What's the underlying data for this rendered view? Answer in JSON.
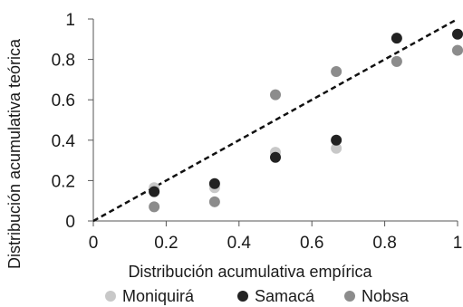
{
  "chart_data": {
    "type": "scatter",
    "xlabel": "Distribución acumulativa empírica",
    "ylabel": "Distribución acumulativa teórica",
    "xlim": [
      0,
      1
    ],
    "ylim": [
      0,
      1
    ],
    "x_ticks": [
      "0",
      "0.2",
      "0.4",
      "0.6",
      "0.8",
      "1"
    ],
    "y_ticks": [
      "0",
      "0.2",
      "0.4",
      "0.6",
      "0.8",
      "1"
    ],
    "reference_line": {
      "style": "dashed",
      "from": [
        0,
        0
      ],
      "to": [
        1,
        1
      ]
    },
    "legend_position": "bottom",
    "grid": false,
    "series": [
      {
        "name": "Moniquirá",
        "color": "#c8c8c8",
        "points": [
          {
            "x": 0.167,
            "y": 0.165
          },
          {
            "x": 0.333,
            "y": 0.165
          },
          {
            "x": 0.5,
            "y": 0.34
          },
          {
            "x": 0.667,
            "y": 0.36
          },
          {
            "x": 0.833,
            "y": 0.79
          },
          {
            "x": 1.0,
            "y": 0.845
          }
        ]
      },
      {
        "name": "Samacá",
        "color": "#222222",
        "points": [
          {
            "x": 0.167,
            "y": 0.145
          },
          {
            "x": 0.333,
            "y": 0.185
          },
          {
            "x": 0.5,
            "y": 0.315
          },
          {
            "x": 0.667,
            "y": 0.4
          },
          {
            "x": 0.833,
            "y": 0.905
          },
          {
            "x": 1.0,
            "y": 0.925
          }
        ]
      },
      {
        "name": "Nobsa",
        "color": "#8c8c8c",
        "points": [
          {
            "x": 0.167,
            "y": 0.07
          },
          {
            "x": 0.333,
            "y": 0.095
          },
          {
            "x": 0.5,
            "y": 0.625
          },
          {
            "x": 0.667,
            "y": 0.74
          },
          {
            "x": 0.833,
            "y": 0.79
          },
          {
            "x": 1.0,
            "y": 0.845
          }
        ]
      }
    ]
  }
}
